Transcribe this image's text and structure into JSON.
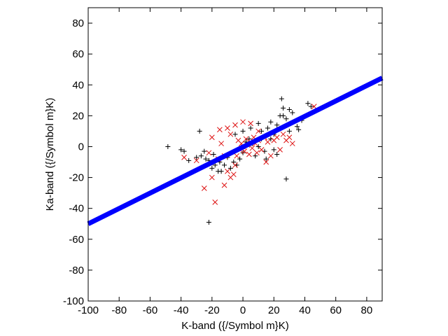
{
  "chart_data": {
    "type": "scatter",
    "title": "",
    "xlabel": "K-band ({/Symbol m}K)",
    "ylabel": "Ka-band ({/Symbol m}K)",
    "xlim": [
      -100,
      90
    ],
    "ylim": [
      -100,
      90
    ],
    "xticks": [
      -100,
      -80,
      -60,
      -40,
      -20,
      0,
      20,
      40,
      60,
      80
    ],
    "yticks": [
      -100,
      -80,
      -60,
      -40,
      -20,
      0,
      20,
      40,
      60,
      80
    ],
    "grid": false,
    "legend": "none",
    "series": [
      {
        "marker": "plus",
        "color": "#000000",
        "points": [
          [
            -48.5,
            0
          ],
          [
            -40,
            -2
          ],
          [
            -38,
            -3
          ],
          [
            -28,
            10
          ],
          [
            -27,
            -6
          ],
          [
            -25,
            -3
          ],
          [
            -24,
            -8
          ],
          [
            -22,
            -9
          ],
          [
            -20,
            -14
          ],
          [
            -19,
            -5
          ],
          [
            -18,
            -12
          ],
          [
            -16,
            -16
          ],
          [
            -15,
            -10
          ],
          [
            -14,
            -16
          ],
          [
            -12,
            -12
          ],
          [
            -10,
            -7
          ],
          [
            -8,
            -14
          ],
          [
            -6,
            -10
          ],
          [
            -4,
            -12
          ],
          [
            -2,
            -8
          ],
          [
            0,
            -4
          ],
          [
            2,
            3
          ],
          [
            4,
            5
          ],
          [
            6,
            2
          ],
          [
            8,
            -6
          ],
          [
            10,
            0
          ],
          [
            12,
            10
          ],
          [
            14,
            -3
          ],
          [
            16,
            12
          ],
          [
            18,
            5
          ],
          [
            20,
            8
          ],
          [
            22,
            14
          ],
          [
            24,
            20
          ],
          [
            25,
            31
          ],
          [
            26,
            25
          ],
          [
            28,
            18
          ],
          [
            30,
            10
          ],
          [
            32,
            22
          ],
          [
            35,
            13
          ],
          [
            36,
            11
          ],
          [
            38,
            17
          ],
          [
            42,
            28
          ],
          [
            44,
            26
          ],
          [
            28,
            -21
          ],
          [
            -22,
            -49
          ],
          [
            -35,
            -9
          ],
          [
            -30,
            -7
          ],
          [
            15,
            -8
          ],
          [
            20,
            -2
          ],
          [
            22,
            -5
          ],
          [
            10,
            15
          ],
          [
            5,
            12
          ],
          [
            -5,
            8
          ],
          [
            0,
            10
          ],
          [
            12,
            5
          ],
          [
            18,
            16
          ],
          [
            26,
            20
          ],
          [
            30,
            24
          ]
        ]
      },
      {
        "marker": "x",
        "color": "#dd1111",
        "points": [
          [
            -38,
            -7
          ],
          [
            -30,
            -9
          ],
          [
            -25,
            -27
          ],
          [
            -20,
            -20
          ],
          [
            -18,
            -36
          ],
          [
            -12,
            -25
          ],
          [
            -10,
            -16
          ],
          [
            -8,
            -20
          ],
          [
            -6,
            -18
          ],
          [
            -5,
            -12
          ],
          [
            -4,
            -6
          ],
          [
            -3,
            4
          ],
          [
            -2,
            -2
          ],
          [
            -1,
            2
          ],
          [
            0,
            0
          ],
          [
            1,
            -3
          ],
          [
            2,
            5
          ],
          [
            3,
            1
          ],
          [
            4,
            -5
          ],
          [
            5,
            3
          ],
          [
            6,
            -1
          ],
          [
            7,
            6
          ],
          [
            8,
            2
          ],
          [
            9,
            -4
          ],
          [
            10,
            4
          ],
          [
            12,
            -2
          ],
          [
            14,
            6
          ],
          [
            15,
            -10
          ],
          [
            16,
            3
          ],
          [
            18,
            -6
          ],
          [
            20,
            4
          ],
          [
            22,
            6
          ],
          [
            24,
            -2
          ],
          [
            26,
            8
          ],
          [
            28,
            4
          ],
          [
            30,
            6
          ],
          [
            32,
            2
          ],
          [
            46,
            26
          ],
          [
            -15,
            11
          ],
          [
            -10,
            12
          ],
          [
            -5,
            14
          ],
          [
            0,
            16
          ],
          [
            5,
            15
          ],
          [
            10,
            10
          ],
          [
            -20,
            6
          ],
          [
            -22,
            -4
          ],
          [
            -16,
            -8
          ],
          [
            -14,
            2
          ],
          [
            -12,
            -6
          ],
          [
            -8,
            8
          ]
        ]
      },
      {
        "type": "line",
        "color": "#0000ff",
        "x": [
          -100,
          90
        ],
        "y": [
          -50,
          44.5
        ]
      }
    ]
  }
}
